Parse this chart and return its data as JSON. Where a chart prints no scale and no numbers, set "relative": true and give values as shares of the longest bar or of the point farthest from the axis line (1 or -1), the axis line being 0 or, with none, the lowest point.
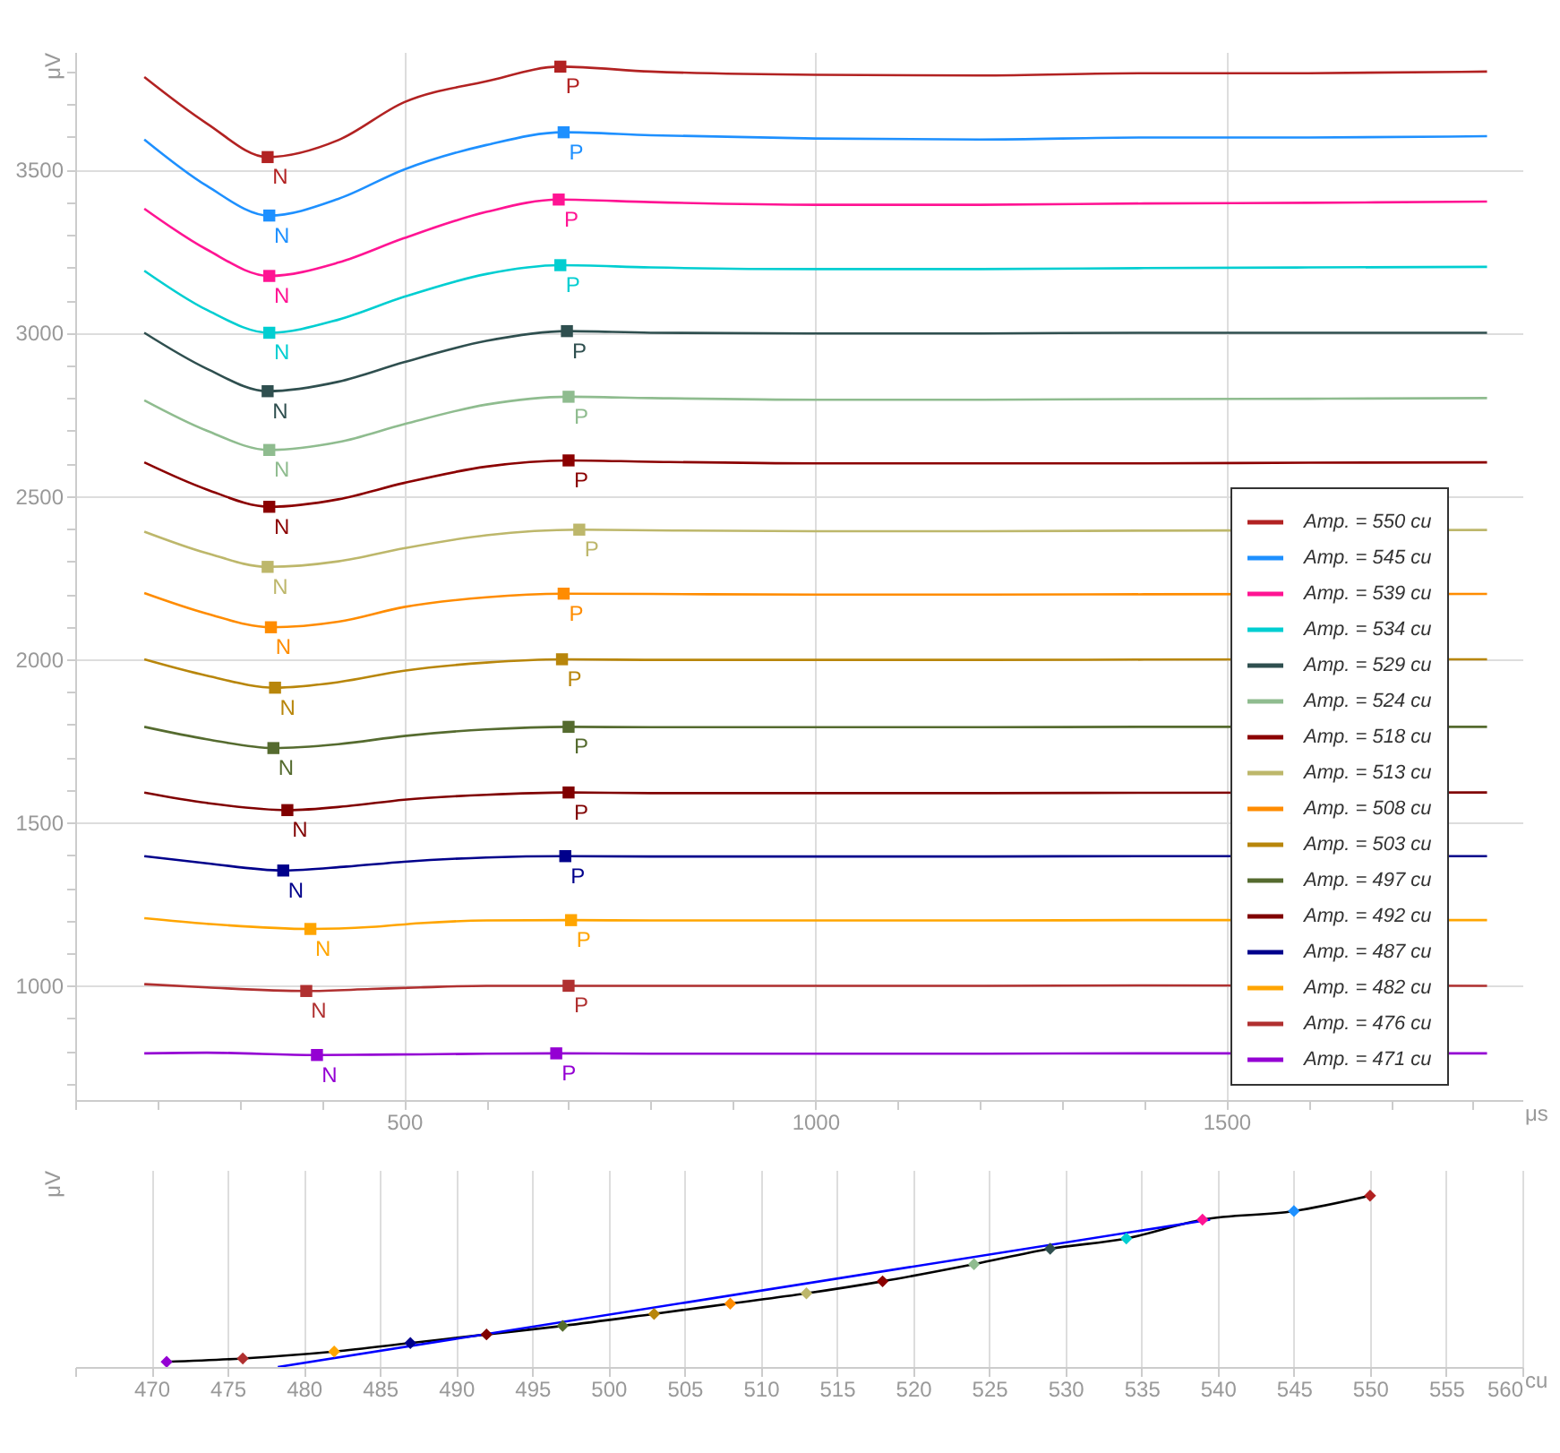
{
  "chart_data": [
    {
      "type": "line",
      "xlabel": "μs",
      "ylabel": "μV",
      "xlim": [
        100,
        1860
      ],
      "ylim": [
        650,
        3860
      ],
      "xticks": [
        {
          "value": 100,
          "label": null
        },
        {
          "value": 200,
          "label": null
        },
        {
          "value": 300,
          "label": null
        },
        {
          "value": 400,
          "label": null
        },
        500,
        {
          "value": 600,
          "label": null
        },
        {
          "value": 700,
          "label": null
        },
        {
          "value": 800,
          "label": null
        },
        {
          "value": 900,
          "label": null
        },
        1000,
        {
          "value": 1100,
          "label": null
        },
        {
          "value": 1200,
          "label": null
        },
        {
          "value": 1300,
          "label": null
        },
        {
          "value": 1400,
          "label": null
        },
        1500,
        {
          "value": 1600,
          "label": null
        },
        {
          "value": 1700,
          "label": null
        },
        {
          "value": 1800,
          "label": null
        }
      ],
      "yticks": [
        {
          "value": 700,
          "label": null
        },
        {
          "value": 800,
          "label": null
        },
        {
          "value": 900,
          "label": null
        },
        1000,
        {
          "value": 1100,
          "label": null
        },
        {
          "value": 1200,
          "label": null
        },
        {
          "value": 1300,
          "label": null
        },
        {
          "value": 1400,
          "label": null
        },
        1500,
        {
          "value": 1600,
          "label": null
        },
        {
          "value": 1700,
          "label": null
        },
        {
          "value": 1800,
          "label": null
        },
        {
          "value": 1900,
          "label": null
        },
        2000,
        {
          "value": 2100,
          "label": null
        },
        {
          "value": 2200,
          "label": null
        },
        {
          "value": 2300,
          "label": null
        },
        {
          "value": 2400,
          "label": null
        },
        2500,
        {
          "value": 2600,
          "label": null
        },
        {
          "value": 2700,
          "label": null
        },
        {
          "value": 2800,
          "label": null
        },
        {
          "value": 2900,
          "label": null
        },
        3000,
        {
          "value": 3100,
          "label": null
        },
        {
          "value": 3200,
          "label": null
        },
        {
          "value": 3300,
          "label": null
        },
        {
          "value": 3400,
          "label": null
        },
        3500,
        {
          "value": 3600,
          "label": null
        },
        {
          "value": 3700,
          "label": null
        },
        {
          "value": 3800,
          "label": null
        }
      ],
      "grid": true,
      "legend": "bottom right",
      "series": [
        {
          "name": "Amp. = 550 cu",
          "color": "#b22222",
          "x": [
            184,
            260,
            334,
            420,
            500,
            600,
            690,
            800,
            1000,
            1200,
            1400,
            1600,
            1817
          ],
          "values": [
            3783,
            3641,
            3538,
            3590,
            3706,
            3770,
            3815,
            3800,
            3790,
            3788,
            3795,
            3795,
            3800
          ],
          "value_labels": [
            null,
            null,
            "N",
            null,
            null,
            null,
            "P",
            null,
            null,
            null,
            null,
            null,
            null
          ]
        },
        {
          "name": "Amp. = 545 cu",
          "color": "#1e90ff",
          "x": [
            184,
            260,
            336,
            420,
            500,
            600,
            694,
            800,
            1000,
            1200,
            1400,
            1600,
            1817
          ],
          "values": [
            3592,
            3450,
            3359,
            3410,
            3500,
            3575,
            3614,
            3605,
            3595,
            3592,
            3598,
            3598,
            3602
          ],
          "value_labels": [
            null,
            null,
            "N",
            null,
            null,
            null,
            "P",
            null,
            null,
            null,
            null,
            null,
            null
          ]
        },
        {
          "name": "Amp. = 539 cu",
          "color": "#ff1493",
          "x": [
            184,
            260,
            336,
            420,
            500,
            600,
            688,
            800,
            1000,
            1200,
            1400,
            1600,
            1817
          ],
          "values": [
            3380,
            3255,
            3174,
            3215,
            3290,
            3370,
            3408,
            3400,
            3392,
            3392,
            3396,
            3398,
            3402
          ],
          "value_labels": [
            null,
            null,
            "N",
            null,
            null,
            null,
            "P",
            null,
            null,
            null,
            null,
            null,
            null
          ]
        },
        {
          "name": "Amp. = 534 cu",
          "color": "#00ced1",
          "x": [
            184,
            260,
            336,
            420,
            500,
            600,
            690,
            800,
            1000,
            1200,
            1400,
            1600,
            1817
          ],
          "values": [
            3190,
            3070,
            3000,
            3040,
            3110,
            3180,
            3207,
            3200,
            3195,
            3195,
            3198,
            3200,
            3202
          ],
          "value_labels": [
            null,
            null,
            "N",
            null,
            null,
            null,
            "P",
            null,
            null,
            null,
            null,
            null,
            null
          ]
        },
        {
          "name": "Amp. = 529 cu",
          "color": "#2f4f4f",
          "x": [
            184,
            260,
            334,
            420,
            500,
            600,
            698,
            800,
            1000,
            1200,
            1400,
            1600,
            1817
          ],
          "values": [
            3000,
            2890,
            2821,
            2850,
            2910,
            2975,
            3005,
            3000,
            2998,
            2998,
            3000,
            3000,
            3000
          ],
          "value_labels": [
            null,
            null,
            "N",
            null,
            null,
            null,
            "P",
            null,
            null,
            null,
            null,
            null,
            null
          ]
        },
        {
          "name": "Amp. = 524 cu",
          "color": "#8fbc8f",
          "x": [
            184,
            260,
            336,
            420,
            500,
            600,
            700,
            800,
            1000,
            1200,
            1400,
            1600,
            1817
          ],
          "values": [
            2793,
            2700,
            2641,
            2665,
            2720,
            2780,
            2804,
            2800,
            2795,
            2795,
            2797,
            2798,
            2800
          ],
          "value_labels": [
            null,
            null,
            "N",
            null,
            null,
            null,
            "P",
            null,
            null,
            null,
            null,
            null,
            null
          ]
        },
        {
          "name": "Amp. = 518 cu",
          "color": "#8b0000",
          "x": [
            184,
            260,
            336,
            420,
            500,
            600,
            700,
            800,
            1000,
            1200,
            1400,
            1600,
            1817
          ],
          "values": [
            2603,
            2520,
            2467,
            2490,
            2540,
            2590,
            2609,
            2605,
            2600,
            2600,
            2600,
            2602,
            2603
          ],
          "value_labels": [
            null,
            null,
            "N",
            null,
            null,
            null,
            "P",
            null,
            null,
            null,
            null,
            null,
            null
          ]
        },
        {
          "name": "Amp. = 513 cu",
          "color": "#bdb76b",
          "x": [
            184,
            260,
            334,
            420,
            500,
            600,
            713,
            800,
            1000,
            1200,
            1400,
            1817
          ],
          "values": [
            2391,
            2325,
            2283,
            2300,
            2340,
            2380,
            2397,
            2395,
            2392,
            2392,
            2394,
            2396
          ],
          "value_labels": [
            null,
            null,
            "N",
            null,
            null,
            null,
            "P",
            null,
            null,
            null,
            null,
            null
          ]
        },
        {
          "name": "Amp. = 508 cu",
          "color": "#ff8c00",
          "x": [
            184,
            260,
            338,
            420,
            500,
            600,
            694,
            800,
            1000,
            1200,
            1400,
            1817
          ],
          "values": [
            2203,
            2140,
            2098,
            2115,
            2160,
            2190,
            2201,
            2200,
            2198,
            2198,
            2199,
            2200
          ],
          "value_labels": [
            null,
            null,
            "N",
            null,
            null,
            null,
            "P",
            null,
            null,
            null,
            null,
            null
          ]
        },
        {
          "name": "Amp. = 503 cu",
          "color": "#b8860b",
          "x": [
            184,
            260,
            343,
            420,
            500,
            600,
            692,
            800,
            1000,
            1200,
            1400,
            1817
          ],
          "values": [
            2000,
            1950,
            1913,
            1930,
            1965,
            1990,
            2000,
            1998,
            1998,
            1998,
            1999,
            2000
          ],
          "value_labels": [
            null,
            null,
            "N",
            null,
            null,
            null,
            "P",
            null,
            null,
            null,
            null,
            null
          ]
        },
        {
          "name": "Amp. = 497 cu",
          "color": "#556b2f",
          "x": [
            184,
            260,
            341,
            420,
            500,
            600,
            700,
            800,
            1000,
            1200,
            1400,
            1817
          ],
          "values": [
            1793,
            1755,
            1728,
            1740,
            1765,
            1785,
            1793,
            1792,
            1792,
            1792,
            1793,
            1793
          ],
          "value_labels": [
            null,
            null,
            "N",
            null,
            null,
            null,
            "P",
            null,
            null,
            null,
            null,
            null
          ]
        },
        {
          "name": "Amp. = 492 cu",
          "color": "#800000",
          "x": [
            184,
            260,
            358,
            430,
            500,
            600,
            700,
            800,
            1000,
            1200,
            1400,
            1817
          ],
          "values": [
            1592,
            1560,
            1538,
            1550,
            1570,
            1585,
            1592,
            1590,
            1590,
            1590,
            1591,
            1592
          ],
          "value_labels": [
            null,
            null,
            "N",
            null,
            null,
            null,
            "P",
            null,
            null,
            null,
            null,
            null
          ]
        },
        {
          "name": "Amp. = 487 cu",
          "color": "#00008b",
          "x": [
            184,
            260,
            353,
            430,
            500,
            600,
            696,
            800,
            1000,
            1200,
            1400,
            1817
          ],
          "values": [
            1397,
            1375,
            1353,
            1365,
            1380,
            1393,
            1397,
            1396,
            1396,
            1396,
            1397,
            1397
          ],
          "value_labels": [
            null,
            null,
            "N",
            null,
            null,
            null,
            "P",
            null,
            null,
            null,
            null,
            null
          ]
        },
        {
          "name": "Amp. = 482 cu",
          "color": "#ffa500",
          "x": [
            184,
            260,
            386,
            460,
            520,
            600,
            703,
            800,
            1000,
            1200,
            1400,
            1817
          ],
          "values": [
            1207,
            1190,
            1174,
            1180,
            1192,
            1200,
            1201,
            1200,
            1200,
            1200,
            1201,
            1201
          ],
          "value_labels": [
            null,
            null,
            "N",
            null,
            null,
            null,
            "P",
            null,
            null,
            null,
            null,
            null
          ]
        },
        {
          "name": "Amp. = 476 cu",
          "color": "#b03030",
          "x": [
            184,
            260,
            381,
            460,
            520,
            600,
            700,
            800,
            1000,
            1200,
            1400,
            1817
          ],
          "values": [
            1005,
            995,
            984,
            990,
            995,
            1000,
            1000,
            1000,
            1000,
            1000,
            1001,
            1000
          ],
          "value_labels": [
            null,
            null,
            "N",
            null,
            null,
            null,
            "P",
            null,
            null,
            null,
            null,
            null
          ]
        },
        {
          "name": "Amp. = 471 cu",
          "color": "#9400d3",
          "x": [
            184,
            260,
            394,
            460,
            520,
            600,
            685,
            800,
            1000,
            1200,
            1400,
            1817
          ],
          "values": [
            793,
            795,
            788,
            789,
            790,
            792,
            793,
            792,
            792,
            792,
            793,
            793
          ],
          "value_labels": [
            null,
            null,
            "N",
            null,
            null,
            null,
            "P",
            null,
            null,
            null,
            null,
            null
          ]
        }
      ]
    },
    {
      "type": "scatter",
      "relative": true,
      "xlabel": "cu",
      "ylabel": "μV",
      "xlim": [
        465,
        560
      ],
      "xticks": [
        {
          "value": 465,
          "label": null
        },
        470,
        475,
        480,
        485,
        490,
        495,
        500,
        505,
        510,
        515,
        520,
        525,
        530,
        535,
        540,
        545,
        550,
        555,
        560
      ],
      "grid": "x",
      "series": [
        {
          "type": "line",
          "color": "#000000",
          "x": [
            471,
            476,
            482,
            487,
            492,
            497,
            503,
            508,
            513,
            518,
            524,
            529,
            534,
            539,
            545,
            550
          ],
          "values": [
            0.03,
            0.05,
            0.09,
            0.14,
            0.19,
            0.24,
            0.31,
            0.37,
            0.43,
            0.5,
            0.6,
            0.69,
            0.75,
            0.86,
            0.91,
            1
          ]
        },
        {
          "type": "line",
          "color": "#0000ff",
          "x": [
            478.3,
            539.5
          ],
          "values": [
            0,
            0.86
          ]
        },
        {
          "type": "scatter",
          "marker": "diamond",
          "x": [
            471,
            476,
            482,
            487,
            492,
            497,
            503,
            508,
            513,
            518,
            524,
            529,
            534,
            539,
            545,
            550
          ],
          "values": [
            0.03,
            0.05,
            0.09,
            0.14,
            0.19,
            0.24,
            0.31,
            0.37,
            0.43,
            0.5,
            0.6,
            0.69,
            0.75,
            0.86,
            0.91,
            1
          ],
          "colors": [
            "#9400d3",
            "#b03030",
            "#ffa500",
            "#00008b",
            "#800000",
            "#556b2f",
            "#b8860b",
            "#ff8c00",
            "#bdb76b",
            "#8b0000",
            "#8fbc8f",
            "#2f4f4f",
            "#00ced1",
            "#ff1493",
            "#1e90ff",
            "#b22222"
          ]
        }
      ]
    }
  ]
}
